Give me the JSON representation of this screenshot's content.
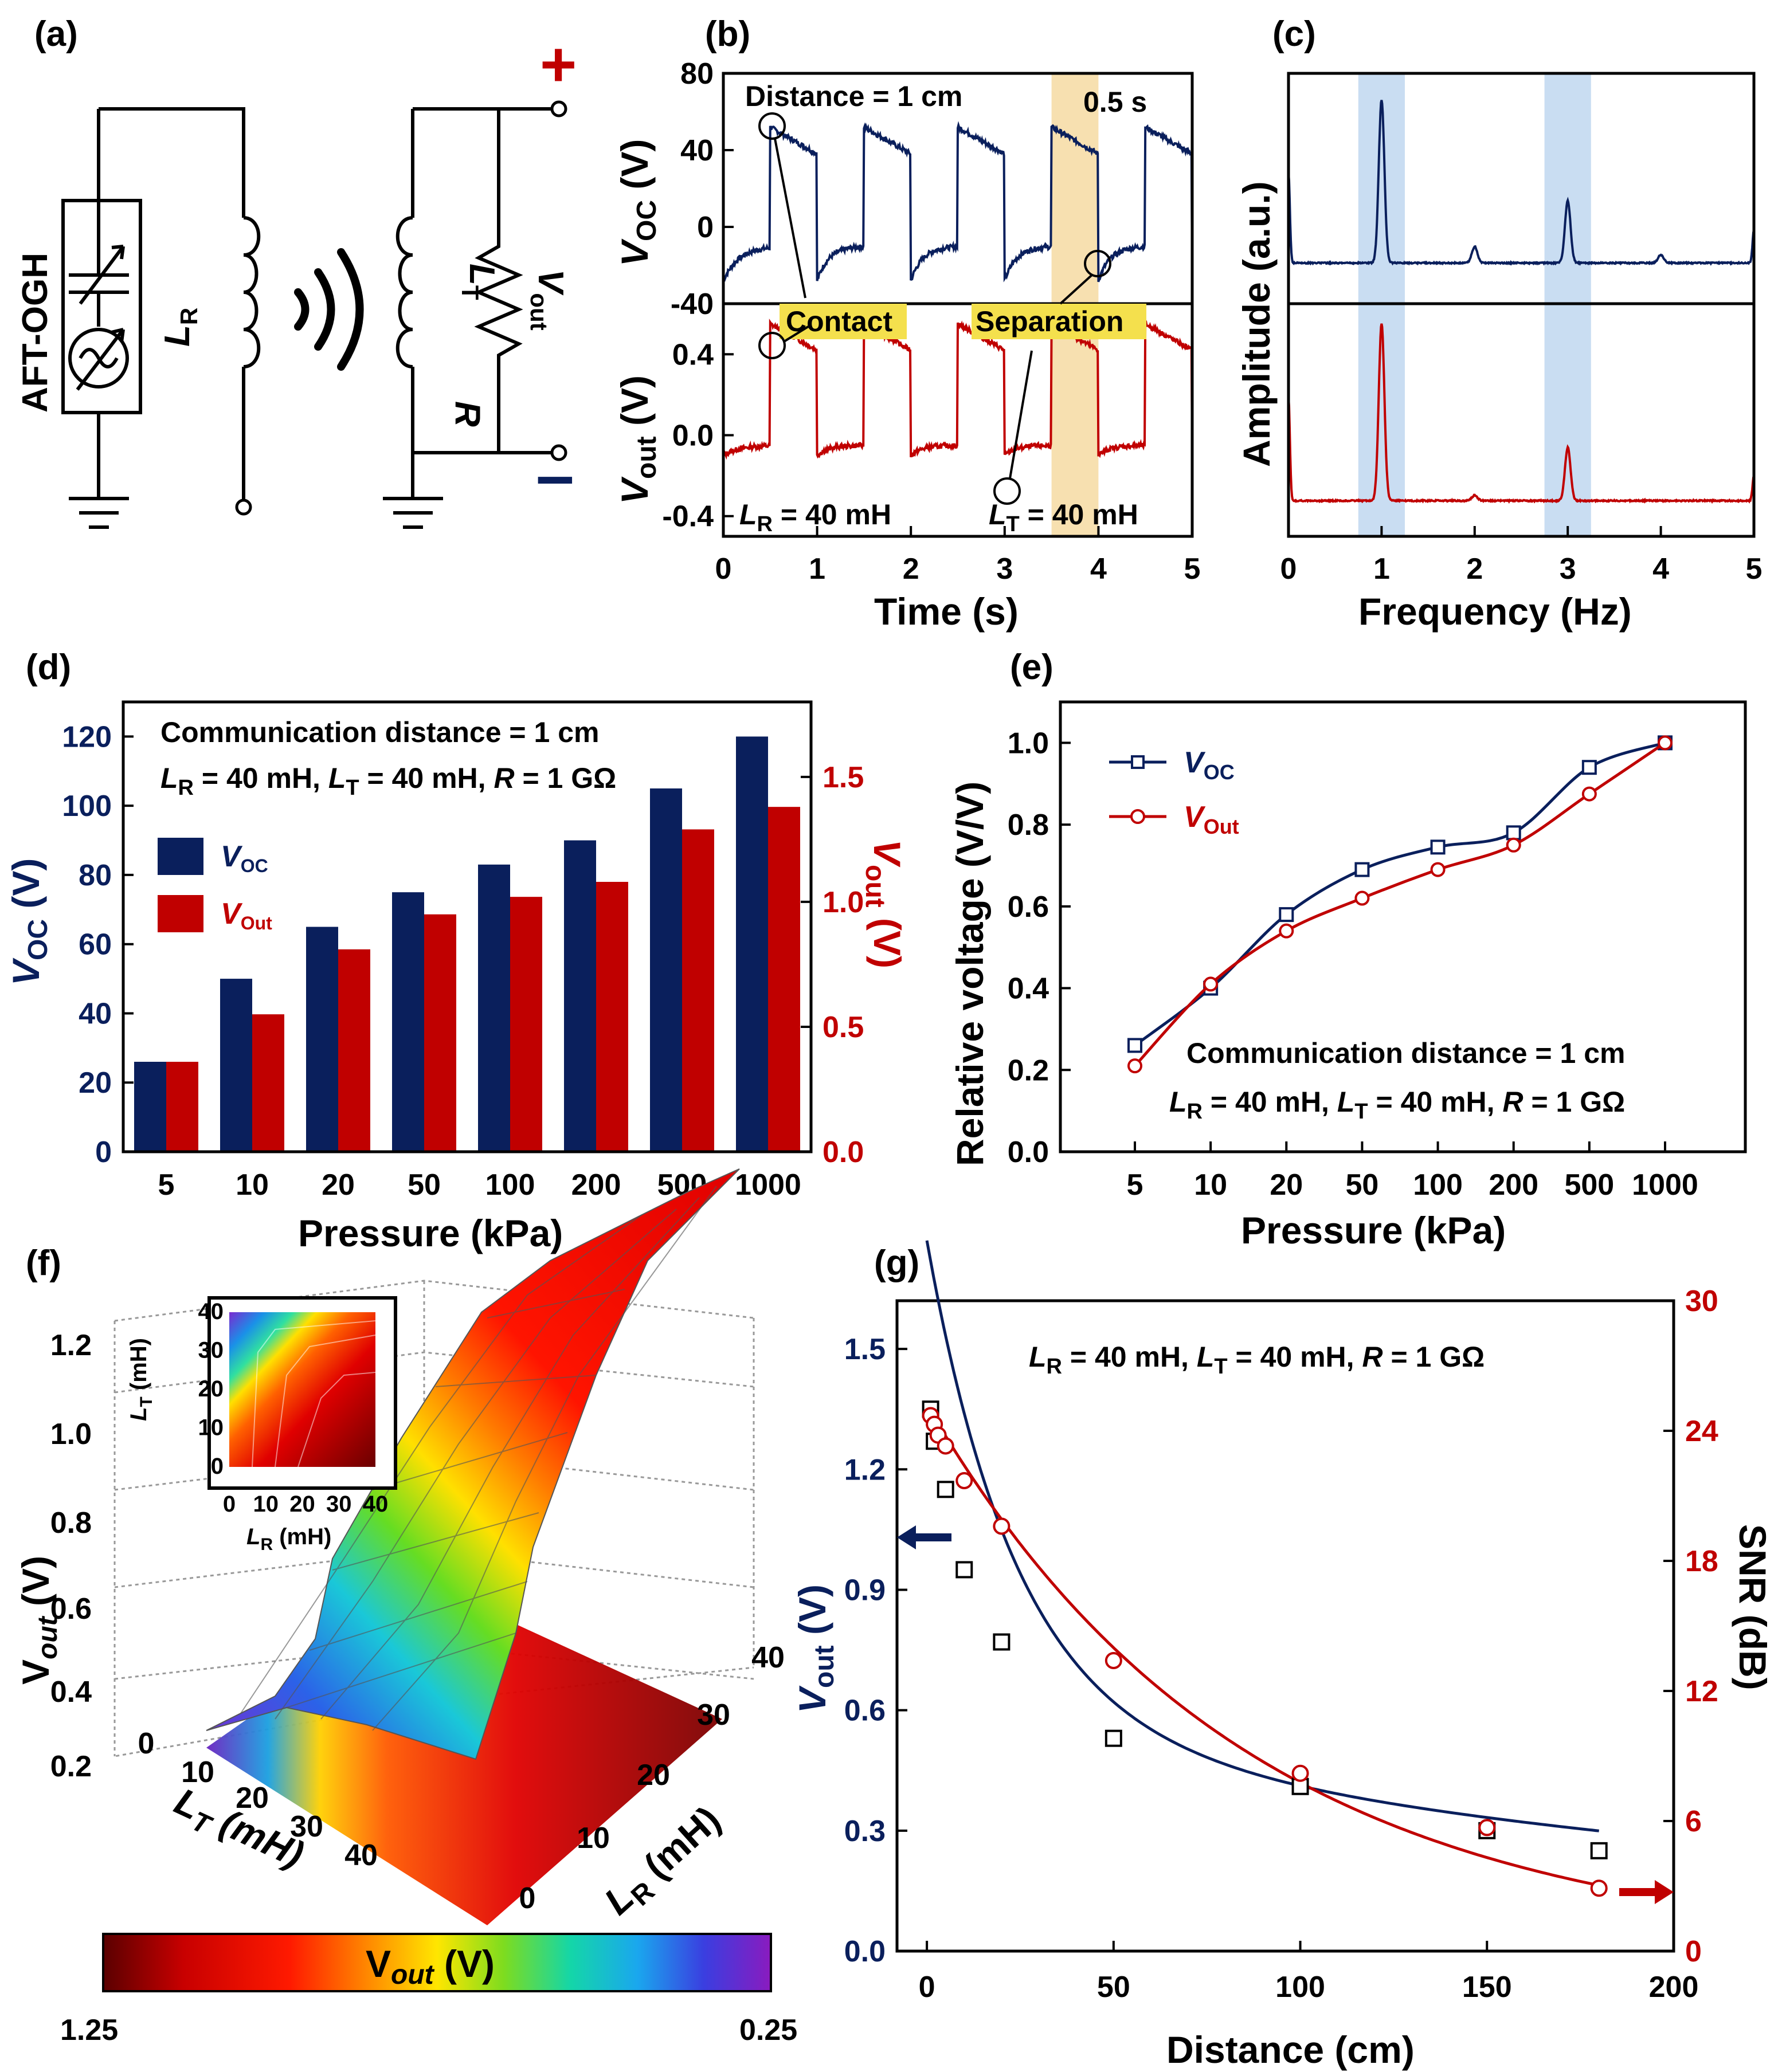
{
  "colors": {
    "navy": "#0a1f5c",
    "red": "#c00000",
    "highlight_yellow": "#f4e04d",
    "shade_orange": "#f7e0b0",
    "shade_blue": "#c9ddf2"
  },
  "panel_a": {
    "label": "(a)",
    "device": "AFT-OGH",
    "receiver_coil": "L",
    "receiver_coil_sub": "R",
    "transmitter_coil": "L",
    "transmitter_coil_sub": "T",
    "resistor": "R",
    "output": "V",
    "output_sub": "out",
    "plus": "+",
    "minus": "–",
    "icons": [
      "capacitor-icon",
      "ac-source-icon",
      "ground-icon",
      "inductor-icon",
      "wireless-wave-icon",
      "resistor-icon"
    ]
  },
  "panel_b": {
    "label": "(b)",
    "distance_text": "Distance = 1 cm",
    "time_window": "0.5 s",
    "contact_label": "Contact",
    "separation_label": "Separation",
    "lr_text": "L",
    "lr_sub": "R",
    "lr_val": " = 40 mH",
    "lt_text": "L",
    "lt_sub": "T",
    "lt_val": " = 40 mH",
    "xlabel": "Time (s)",
    "y_top_label": "V",
    "y_top_sub": "OC",
    "y_top_unit": " (V)",
    "y_bot_label": "V",
    "y_bot_sub": "out",
    "y_bot_unit": " (V)",
    "x_ticks": [
      "0",
      "1",
      "2",
      "3",
      "4",
      "5"
    ],
    "y_top_ticks": [
      "80",
      "40",
      "0",
      "-40"
    ],
    "y_bot_ticks": [
      "0.4",
      "0.0",
      "-0.4"
    ]
  },
  "panel_c": {
    "label": "(c)",
    "xlabel": "Frequency (Hz)",
    "ylabel": "Amplitude  (a.u.)",
    "x_ticks": [
      "0",
      "1",
      "2",
      "3",
      "4",
      "5"
    ]
  },
  "panel_d": {
    "label": "(d)",
    "note1": "Communication  distance = 1 cm",
    "note2_parts": [
      "L",
      "R",
      " = 40 mH, ",
      "L",
      "T",
      " = 40 mH, ",
      "R",
      " = 1 GΩ"
    ],
    "xlabel": "Pressure (kPa)",
    "ylabel_left": "V",
    "ylabel_left_sub": "OC",
    "ylabel_left_unit": " (V)",
    "ylabel_right": "V",
    "ylabel_right_sub": "out",
    "ylabel_right_unit": " (V)",
    "legend": [
      {
        "name": "V",
        "sub": "OC"
      },
      {
        "name": "V",
        "sub": "Out"
      }
    ],
    "y_left_ticks": [
      "0",
      "20",
      "40",
      "60",
      "80",
      "100",
      "120"
    ],
    "y_right_ticks": [
      "0.0",
      "0.5",
      "1.0",
      "1.5"
    ]
  },
  "panel_e": {
    "label": "(e)",
    "ylabel": "Relative voltage (V/V)",
    "xlabel": "Pressure (kPa)",
    "note1": "Communication  distance = 1 cm",
    "note2_parts": [
      "L",
      "R",
      " = 40 mH, ",
      "L",
      "T",
      " = 40 mH, ",
      "R",
      " = 1 GΩ"
    ],
    "legend": [
      {
        "name": "V",
        "sub": "OC"
      },
      {
        "name": "V",
        "sub": "Out"
      }
    ],
    "y_ticks": [
      "0.0",
      "0.2",
      "0.4",
      "0.6",
      "0.8",
      "1.0"
    ]
  },
  "panel_f": {
    "label": "(f)",
    "zlabel": "V",
    "zlabel_sub": "out",
    "zlabel_unit": " (V)",
    "lt_axis": "L",
    "lt_axis_sub": "T",
    "lt_axis_unit": " (mH)",
    "lr_axis": "L",
    "lr_axis_sub": "R",
    "lr_axis_unit": " (mH)",
    "z_ticks": [
      "1.2",
      "1.0",
      "0.8",
      "0.6",
      "0.4",
      "0.2"
    ],
    "lt_ticks": [
      "0",
      "10",
      "20",
      "30",
      "40"
    ],
    "lr_ticks": [
      "0",
      "10",
      "20",
      "30",
      "40"
    ],
    "inset_ticks": [
      "0",
      "10",
      "20",
      "30",
      "40"
    ],
    "inset_ylabel": "L",
    "inset_ylabel_sub": "T",
    "inset_ylabel_unit": " (mH)",
    "inset_xlabel": "L",
    "inset_xlabel_sub": "R",
    "inset_xlabel_unit": " (mH)",
    "colorbar_label": "V",
    "colorbar_label_sub": "out",
    "colorbar_label_unit": " (V)",
    "colorbar_min": "0.25",
    "colorbar_max": "1.25"
  },
  "panel_g": {
    "label": "(g)",
    "note_parts": [
      "L",
      "R",
      " = 40 mH, ",
      "L",
      "T",
      " = 40 mH, ",
      "R",
      " = 1 GΩ"
    ],
    "xlabel": "Distance (cm)",
    "ylabel_left": "V",
    "ylabel_left_sub": "out",
    "ylabel_left_unit": " (V)",
    "ylabel_right": "SNR (dB)",
    "x_ticks": [
      "0",
      "50",
      "100",
      "150",
      "200"
    ],
    "y_left_ticks": [
      "0.0",
      "0.3",
      "0.6",
      "0.9",
      "1.2",
      "1.5"
    ],
    "y_right_ticks": [
      "0",
      "6",
      "12",
      "18",
      "24",
      "30"
    ]
  },
  "chart_data": [
    {
      "panel": "b",
      "type": "line",
      "xlim": [
        0,
        5
      ],
      "ylim_top": [
        -40,
        80
      ],
      "ylim_bottom": [
        -0.5,
        0.65
      ],
      "pulse_contact_times": [
        0.5,
        1.5,
        2.5,
        3.5,
        4.5
      ],
      "pulse_separation_times": [
        1.0,
        2.0,
        3.0,
        4.0
      ],
      "series": [
        {
          "name": "V_OC",
          "baseline": -10,
          "peak": 52,
          "decay_to": 38,
          "dip": -28
        },
        {
          "name": "V_out",
          "baseline": -0.05,
          "peak": 0.55,
          "decay_to": 0.42,
          "dip": -0.1
        }
      ],
      "highlight_window": [
        3.5,
        4.0
      ]
    },
    {
      "panel": "c",
      "type": "line",
      "xlim": [
        0,
        5
      ],
      "shaded_bands": [
        [
          0.75,
          1.25
        ],
        [
          2.75,
          3.25
        ]
      ],
      "series": [
        {
          "name": "V_OC spectrum",
          "peaks": [
            {
              "f": 0.0,
              "a": 0.55
            },
            {
              "f": 1.0,
              "a": 1.0
            },
            {
              "f": 2.0,
              "a": 0.1
            },
            {
              "f": 3.0,
              "a": 0.38
            },
            {
              "f": 4.0,
              "a": 0.05
            },
            {
              "f": 5.0,
              "a": 0.2
            }
          ]
        },
        {
          "name": "V_out spectrum",
          "peaks": [
            {
              "f": 0.0,
              "a": 0.58
            },
            {
              "f": 1.0,
              "a": 1.0
            },
            {
              "f": 2.0,
              "a": 0.03
            },
            {
              "f": 3.0,
              "a": 0.3
            },
            {
              "f": 4.0,
              "a": 0.0
            },
            {
              "f": 5.0,
              "a": 0.14
            }
          ]
        }
      ]
    },
    {
      "panel": "d",
      "type": "bar",
      "categories": [
        "5",
        "10",
        "20",
        "50",
        "100",
        "200",
        "500",
        "1000"
      ],
      "ylim_left": [
        0,
        130
      ],
      "ylim_right": [
        0,
        1.8
      ],
      "series": [
        {
          "name": "V_OC",
          "axis": "left",
          "values": [
            26,
            50,
            65,
            75,
            83,
            90,
            105,
            120
          ]
        },
        {
          "name": "V_Out",
          "axis": "right",
          "values": [
            0.36,
            0.55,
            0.81,
            0.95,
            1.02,
            1.08,
            1.29,
            1.38
          ]
        }
      ]
    },
    {
      "panel": "e",
      "type": "line",
      "categories": [
        "5",
        "10",
        "20",
        "50",
        "100",
        "200",
        "500",
        "1000"
      ],
      "ylim": [
        0,
        1.1
      ],
      "series": [
        {
          "name": "V_OC",
          "values": [
            0.26,
            0.4,
            0.58,
            0.69,
            0.745,
            0.78,
            0.94,
            1.0
          ]
        },
        {
          "name": "V_Out",
          "values": [
            0.21,
            0.41,
            0.54,
            0.62,
            0.69,
            0.75,
            0.875,
            1.0
          ]
        }
      ]
    },
    {
      "panel": "g",
      "type": "line",
      "xlim": [
        -8,
        200
      ],
      "ylim_left": [
        0,
        1.62
      ],
      "ylim_right": [
        0,
        30
      ],
      "series": [
        {
          "name": "V_out",
          "axis": "left",
          "x": [
            1,
            2,
            5,
            10,
            20,
            50,
            100,
            150,
            180
          ],
          "y": [
            1.35,
            1.27,
            1.15,
            0.95,
            0.77,
            0.53,
            0.41,
            0.3,
            0.25
          ]
        },
        {
          "name": "SNR",
          "axis": "right",
          "x": [
            1,
            2,
            3,
            5,
            10,
            20,
            50,
            100,
            150,
            180
          ],
          "y": [
            24.7,
            24.3,
            23.8,
            23.3,
            21.7,
            19.6,
            13.4,
            8.2,
            5.7,
            2.9
          ]
        }
      ]
    }
  ]
}
